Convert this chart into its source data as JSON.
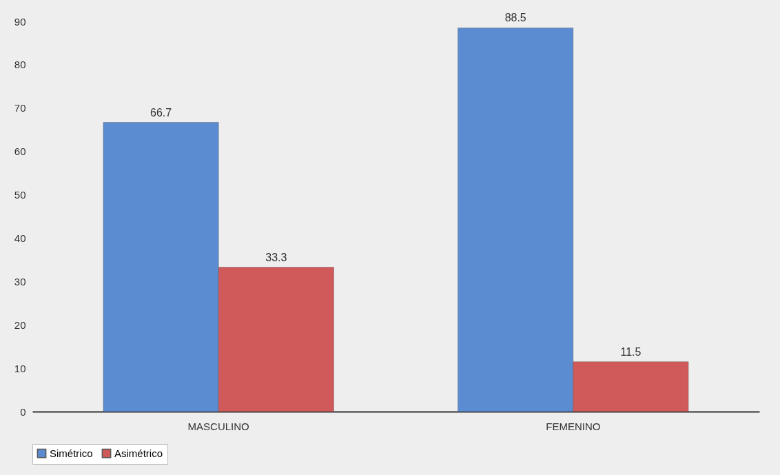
{
  "chart_data": {
    "type": "bar",
    "categories": [
      "MASCULINO",
      "FEMENINO"
    ],
    "series": [
      {
        "name": "Simétrico",
        "color": "#5b8bd0",
        "values": [
          66.7,
          88.5
        ]
      },
      {
        "name": "Asimétrico",
        "color": "#d05a5a",
        "values": [
          33.3,
          11.5
        ]
      }
    ],
    "ylim": [
      0,
      90
    ],
    "yticks": [
      0,
      10,
      20,
      30,
      40,
      50,
      60,
      70,
      80,
      90
    ],
    "data_labels": true,
    "legend": "bottom"
  }
}
